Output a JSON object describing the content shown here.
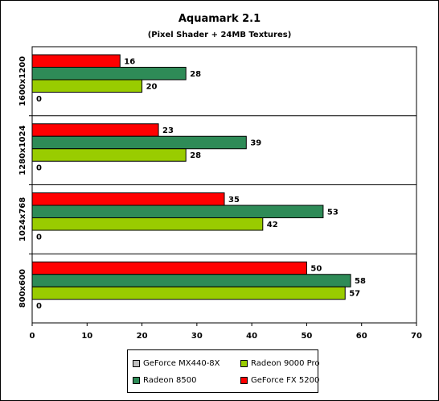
{
  "chart_data": {
    "type": "bar",
    "orientation": "horizontal",
    "title": "Aquamark 2.1",
    "subtitle": "(Pixel Shader + 24MB Textures)",
    "categories": [
      "1600x1200",
      "1280x1024",
      "1024x768",
      "800x600"
    ],
    "series": [
      {
        "name": "GeForce FX 5200",
        "color": "#ff0000",
        "values": [
          16,
          23,
          35,
          50
        ]
      },
      {
        "name": "Radeon 8500",
        "color": "#2e8b57",
        "values": [
          28,
          39,
          53,
          58
        ]
      },
      {
        "name": "Radeon 9000 Pro",
        "color": "#99cc00",
        "values": [
          20,
          28,
          42,
          57
        ]
      },
      {
        "name": "GeForce MX440-8X",
        "color": "#c0c0c0",
        "values": [
          0,
          0,
          0,
          0
        ]
      }
    ],
    "xlim": [
      0,
      70
    ],
    "x_ticks": [
      "0",
      "10",
      "20",
      "30",
      "40",
      "50",
      "60",
      "70"
    ],
    "grid": "category separators",
    "legend": {
      "position": "bottom",
      "order": [
        "GeForce MX440-8X",
        "Radeon 9000 Pro",
        "Radeon 8500",
        "GeForce FX 5200"
      ]
    },
    "plot_background": "#ffffff"
  }
}
